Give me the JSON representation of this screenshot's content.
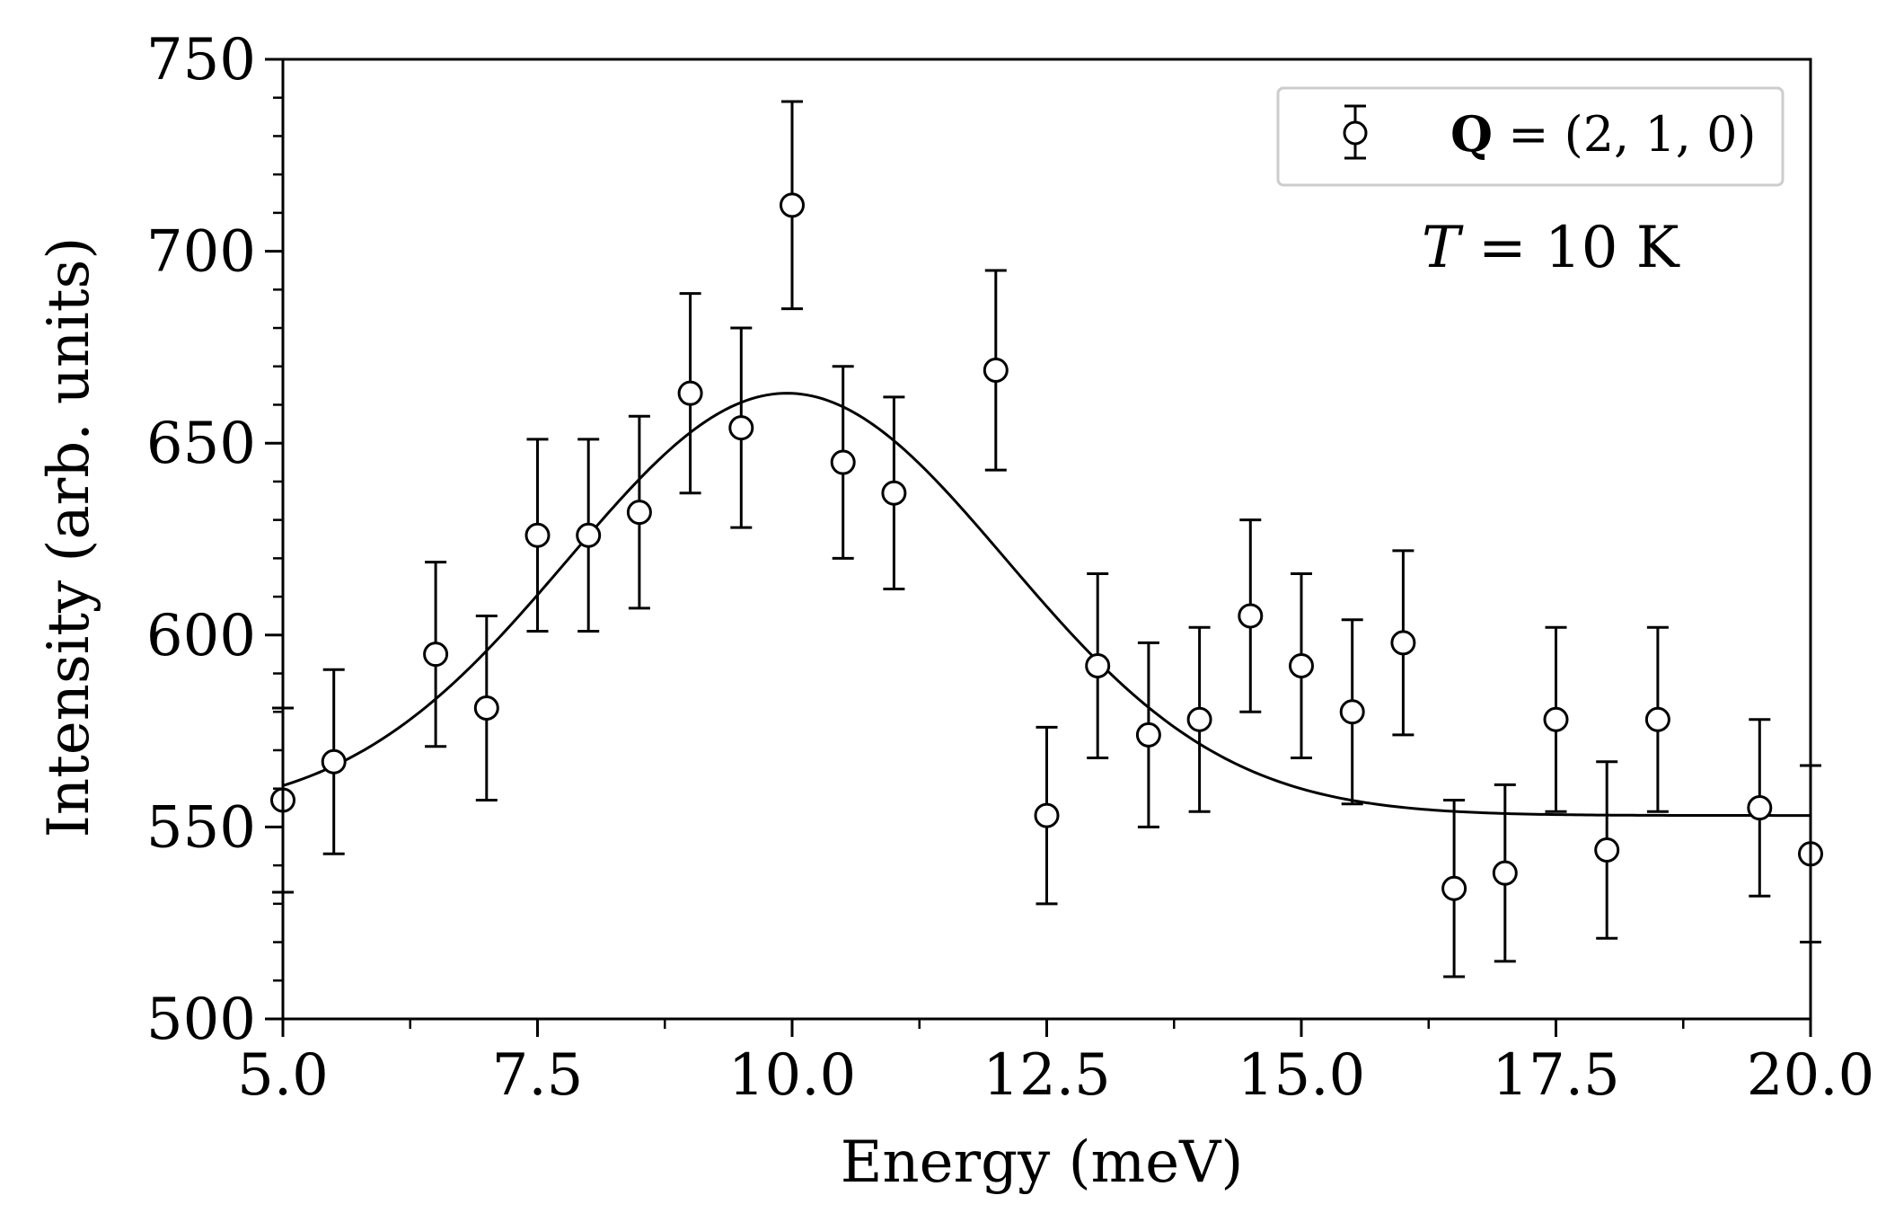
{
  "chart_data": {
    "type": "scatter",
    "title": "",
    "xlabel": "Energy (meV)",
    "ylabel": "Intensity (arb. units)",
    "xlim": [
      5.0,
      20.0
    ],
    "ylim": [
      500,
      750
    ],
    "xticks": [
      5.0,
      7.5,
      10.0,
      12.5,
      15.0,
      17.5,
      20.0
    ],
    "xtick_labels": [
      "5.0",
      "7.5",
      "10.0",
      "12.5",
      "15.0",
      "17.5",
      "20.0"
    ],
    "yticks": [
      500,
      550,
      600,
      650,
      700,
      750
    ],
    "ytick_labels": [
      "500",
      "550",
      "600",
      "650",
      "700",
      "750"
    ],
    "grid": false,
    "legend": {
      "placement": "top-right",
      "label_bold": "Q",
      "label_rest": " = (2, 1, 0)"
    },
    "annotation": {
      "var": "T",
      "text": " = 10 K",
      "placement": "upper-right"
    },
    "series": [
      {
        "name": "Q = (2, 1, 0)",
        "kind": "errorbar",
        "marker": "open-circle",
        "x": [
          5.0,
          5.5,
          6.5,
          7.0,
          7.5,
          8.0,
          8.5,
          9.0,
          9.5,
          10.0,
          10.5,
          11.0,
          12.0,
          12.5,
          13.0,
          13.5,
          14.0,
          14.5,
          15.0,
          15.5,
          16.0,
          16.5,
          17.0,
          17.5,
          18.0,
          18.5,
          19.5,
          20.0
        ],
        "y": [
          557,
          567,
          595,
          581,
          626,
          626,
          632,
          663,
          654,
          712,
          645,
          637,
          669,
          553,
          592,
          574,
          578,
          605,
          592,
          580,
          598,
          534,
          538,
          578,
          544,
          578,
          555,
          543
        ],
        "yerr": [
          24,
          24,
          24,
          24,
          25,
          25,
          25,
          26,
          26,
          27,
          25,
          25,
          26,
          23,
          24,
          24,
          24,
          25,
          24,
          24,
          24,
          23,
          23,
          24,
          23,
          24,
          23,
          23
        ]
      },
      {
        "name": "fit",
        "kind": "line",
        "model": "gaussian",
        "baseline": 553,
        "amplitude": 110,
        "center": 9.95,
        "sigma": 2.15
      }
    ]
  }
}
